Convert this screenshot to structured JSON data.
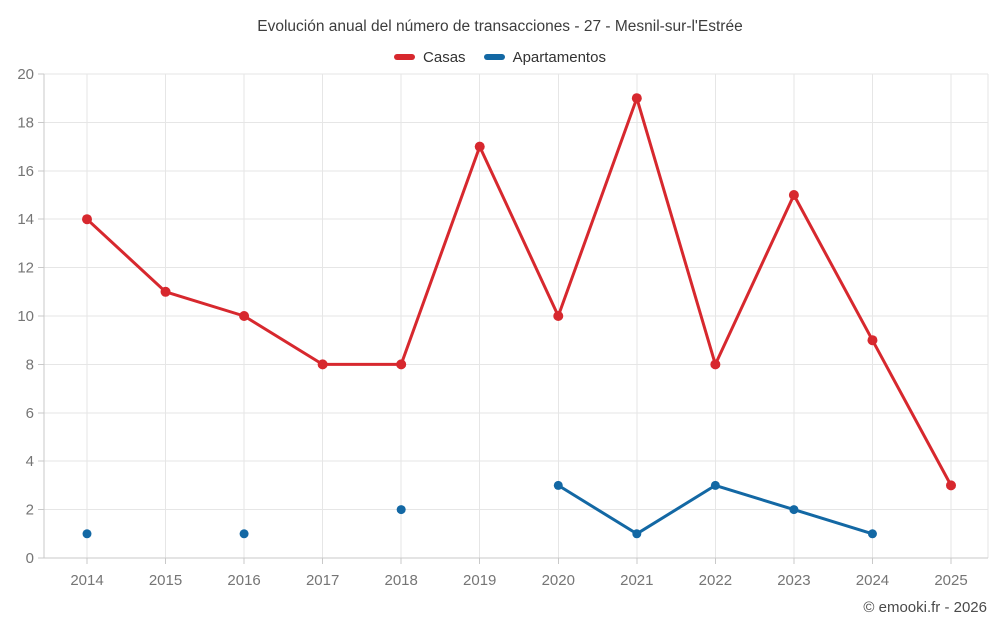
{
  "chart_data": {
    "type": "line",
    "title": "Evolución anual del número de transacciones - 27 - Mesnil-sur-l'Estrée",
    "categories": [
      "2014",
      "2015",
      "2016",
      "2017",
      "2018",
      "2019",
      "2020",
      "2021",
      "2022",
      "2023",
      "2024",
      "2025"
    ],
    "series": [
      {
        "name": "Casas",
        "color": "#d7282e",
        "values": [
          14,
          11,
          10,
          8,
          8,
          17,
          10,
          19,
          8,
          15,
          9,
          3
        ]
      },
      {
        "name": "Apartamentos",
        "color": "#1368a4",
        "values": [
          1,
          null,
          1,
          null,
          2,
          null,
          3,
          1,
          3,
          2,
          1,
          null
        ]
      }
    ],
    "xlabel": "",
    "ylabel": "",
    "ylim": [
      0,
      20
    ],
    "ytick_step": 2,
    "grid": true,
    "legend_position": "top",
    "colors": {
      "grid": "#e6e6e6",
      "axis": "#c9c9c9",
      "tick_text": "#757575",
      "title_text": "#3d3d3d"
    }
  },
  "footer": {
    "copyright": "© emooki.fr - 2026"
  }
}
